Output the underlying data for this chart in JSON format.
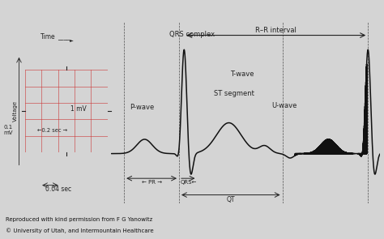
{
  "bg_color": "#d4d4d4",
  "ecg_color": "#111111",
  "grid_bg": "#f0b8b8",
  "grid_line_color": "#cc3333",
  "text_color": "#222222",
  "footer_bg": "#aaaaaa",
  "footer_text": [
    "Reproduced with kind permission from F G Yanowitz",
    "© University of Utah, and Intermountain Healthcare"
  ],
  "label_QRS_complex": "QRS complex",
  "label_P_wave": "P-wave",
  "label_ST_segment": "ST segment",
  "label_T_wave": "T-wave",
  "label_U_wave": "U-wave",
  "label_RR": "R–R interval",
  "label_time": "Time —►",
  "label_voltage": "Voltage",
  "label_1mv": "1 mV",
  "label_02sec": "←0.2 sec →",
  "label_01mv": "0.1\nmV",
  "label_004sec": "0.04 sec"
}
